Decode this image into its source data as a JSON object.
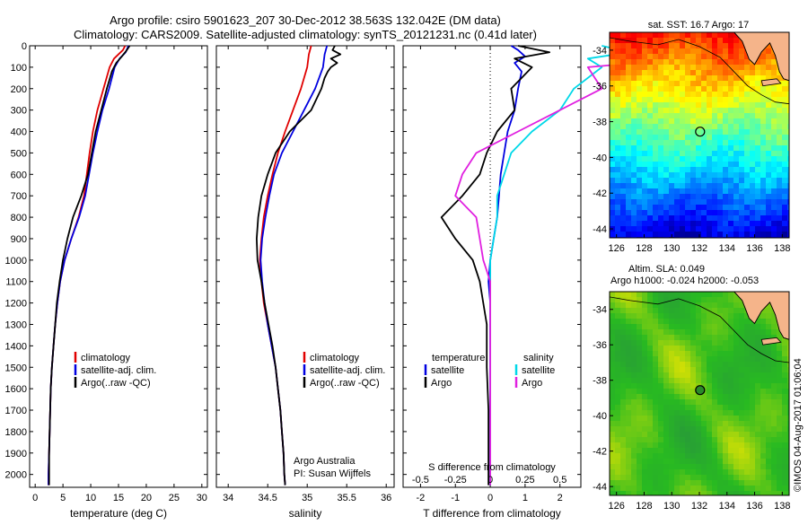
{
  "title": {
    "line1": "Argo profile: csiro 5901623_207 30-Dec-2012 38.563S 132.042E (DM data)",
    "line2": "Climatology: CARS2009. Satellite-adjusted climatology: synTS_20121231.nc (0.41d later)"
  },
  "footer": {
    "credit": "©IMOS 04-Aug-2017 01:06:04"
  },
  "colors": {
    "climatology": "#e00000",
    "satellite": "#0000e0",
    "argo": "#000000",
    "sat_diff": "#00d8e8",
    "argo_sal_diff": "#e020e0",
    "land": "#f5b48a",
    "coast": "#000000",
    "marker": "#000000"
  },
  "chart_data": [
    {
      "id": "temperature",
      "type": "line",
      "xlabel": "temperature (deg C)",
      "ylabel": "",
      "xlim": [
        -1,
        31
      ],
      "ylim": [
        2060,
        0
      ],
      "xticks": [
        0,
        5,
        10,
        15,
        20,
        25,
        30
      ],
      "yticks": [
        0,
        100,
        200,
        300,
        400,
        500,
        600,
        700,
        800,
        900,
        1000,
        1100,
        1200,
        1300,
        1400,
        1500,
        1600,
        1700,
        1800,
        1900,
        2000
      ],
      "legend": [
        "climatology",
        "satellite-adj. clim.",
        "Argo(..raw -QC)"
      ],
      "series": [
        {
          "name": "climatology",
          "color": "#e00000",
          "points": [
            [
              16.2,
              0
            ],
            [
              15.8,
              20
            ],
            [
              14.2,
              60
            ],
            [
              13.4,
              100
            ],
            [
              12.3,
              200
            ],
            [
              11.2,
              300
            ],
            [
              10.4,
              400
            ],
            [
              9.8,
              500
            ],
            [
              9.3,
              600
            ],
            [
              8.8,
              700
            ],
            [
              7.8,
              800
            ],
            [
              6.5,
              900
            ],
            [
              5.3,
              1000
            ],
            [
              4.5,
              1100
            ],
            [
              4.0,
              1200
            ],
            [
              3.6,
              1300
            ],
            [
              3.3,
              1400
            ],
            [
              3.0,
              1500
            ],
            [
              2.8,
              1600
            ],
            [
              2.7,
              1700
            ],
            [
              2.6,
              1800
            ],
            [
              2.5,
              1900
            ],
            [
              2.4,
              2000
            ],
            [
              2.4,
              2050
            ]
          ]
        },
        {
          "name": "satellite-adj. clim.",
          "color": "#0000e0",
          "points": [
            [
              16.8,
              0
            ],
            [
              16.3,
              30
            ],
            [
              15.2,
              60
            ],
            [
              14.3,
              100
            ],
            [
              13.3,
              200
            ],
            [
              12.1,
              300
            ],
            [
              11.2,
              400
            ],
            [
              10.4,
              500
            ],
            [
              9.7,
              600
            ],
            [
              9.0,
              700
            ],
            [
              7.9,
              800
            ],
            [
              6.5,
              900
            ],
            [
              5.3,
              1000
            ],
            [
              4.5,
              1100
            ],
            [
              4.0,
              1200
            ],
            [
              3.6,
              1300
            ],
            [
              3.3,
              1400
            ],
            [
              3.0,
              1500
            ],
            [
              2.8,
              1600
            ],
            [
              2.7,
              1700
            ],
            [
              2.6,
              1800
            ],
            [
              2.5,
              1900
            ],
            [
              2.4,
              2000
            ],
            [
              2.4,
              2050
            ]
          ]
        },
        {
          "name": "Argo(..raw -QC)",
          "color": "#000000",
          "points": [
            [
              17.0,
              0
            ],
            [
              16.5,
              20
            ],
            [
              15.6,
              50
            ],
            [
              14.6,
              80
            ],
            [
              13.8,
              120
            ],
            [
              12.9,
              200
            ],
            [
              11.9,
              300
            ],
            [
              10.9,
              400
            ],
            [
              10.2,
              500
            ],
            [
              9.5,
              600
            ],
            [
              8.3,
              700
            ],
            [
              6.8,
              800
            ],
            [
              5.8,
              900
            ],
            [
              5.0,
              1000
            ],
            [
              4.4,
              1100
            ],
            [
              3.9,
              1200
            ],
            [
              3.6,
              1300
            ],
            [
              3.3,
              1400
            ],
            [
              3.0,
              1500
            ],
            [
              2.8,
              1600
            ],
            [
              2.7,
              1700
            ],
            [
              2.6,
              1800
            ],
            [
              2.5,
              1900
            ],
            [
              2.5,
              2000
            ],
            [
              2.5,
              2050
            ]
          ]
        }
      ]
    },
    {
      "id": "salinity",
      "type": "line",
      "xlabel": "salinity",
      "ylabel": "",
      "xlim": [
        33.85,
        36.1
      ],
      "ylim": [
        2060,
        0
      ],
      "xticks": [
        34,
        34.5,
        35,
        35.5,
        36
      ],
      "yticks": [
        0,
        100,
        200,
        300,
        400,
        500,
        600,
        700,
        800,
        900,
        1000,
        1100,
        1200,
        1300,
        1400,
        1500,
        1600,
        1700,
        1800,
        1900,
        2000
      ],
      "legend": [
        "climatology",
        "satellite-adj. clim.",
        "Argo(..raw -QC)"
      ],
      "annotation": [
        "Argo Australia",
        "PI: Susan Wijffels"
      ],
      "series": [
        {
          "name": "climatology",
          "color": "#e00000",
          "points": [
            [
              35.05,
              0
            ],
            [
              35.02,
              40
            ],
            [
              35.0,
              100
            ],
            [
              34.92,
              200
            ],
            [
              34.82,
              300
            ],
            [
              34.72,
              400
            ],
            [
              34.63,
              500
            ],
            [
              34.56,
              600
            ],
            [
              34.5,
              700
            ],
            [
              34.45,
              800
            ],
            [
              34.42,
              900
            ],
            [
              34.4,
              1000
            ],
            [
              34.42,
              1100
            ],
            [
              34.45,
              1200
            ],
            [
              34.5,
              1300
            ],
            [
              34.55,
              1400
            ],
            [
              34.6,
              1500
            ],
            [
              34.63,
              1600
            ],
            [
              34.66,
              1700
            ],
            [
              34.68,
              1800
            ],
            [
              34.7,
              1900
            ],
            [
              34.71,
              2000
            ],
            [
              34.72,
              2050
            ]
          ]
        },
        {
          "name": "satellite-adj. clim.",
          "color": "#0000e0",
          "points": [
            [
              35.25,
              0
            ],
            [
              35.22,
              40
            ],
            [
              35.2,
              100
            ],
            [
              35.1,
              200
            ],
            [
              34.96,
              300
            ],
            [
              34.82,
              400
            ],
            [
              34.68,
              500
            ],
            [
              34.58,
              600
            ],
            [
              34.52,
              700
            ],
            [
              34.47,
              800
            ],
            [
              34.43,
              900
            ],
            [
              34.41,
              1000
            ],
            [
              34.43,
              1100
            ],
            [
              34.46,
              1200
            ],
            [
              34.5,
              1300
            ],
            [
              34.55,
              1400
            ],
            [
              34.6,
              1500
            ],
            [
              34.63,
              1600
            ],
            [
              34.66,
              1700
            ],
            [
              34.68,
              1800
            ],
            [
              34.7,
              1900
            ],
            [
              34.71,
              2000
            ],
            [
              34.72,
              2050
            ]
          ]
        },
        {
          "name": "Argo(..raw -QC)",
          "color": "#000000",
          "points": [
            [
              35.35,
              0
            ],
            [
              35.32,
              20
            ],
            [
              35.42,
              40
            ],
            [
              35.3,
              60
            ],
            [
              35.38,
              80
            ],
            [
              35.3,
              100
            ],
            [
              35.26,
              120
            ],
            [
              35.22,
              150
            ],
            [
              35.18,
              200
            ],
            [
              35.05,
              300
            ],
            [
              34.78,
              400
            ],
            [
              34.6,
              500
            ],
            [
              34.5,
              600
            ],
            [
              34.42,
              700
            ],
            [
              34.38,
              800
            ],
            [
              34.36,
              900
            ],
            [
              34.37,
              1000
            ],
            [
              34.42,
              1100
            ],
            [
              34.46,
              1200
            ],
            [
              34.51,
              1300
            ],
            [
              34.56,
              1400
            ],
            [
              34.6,
              1500
            ],
            [
              34.63,
              1600
            ],
            [
              34.66,
              1700
            ],
            [
              34.68,
              1800
            ],
            [
              34.7,
              1900
            ],
            [
              34.71,
              2000
            ],
            [
              34.72,
              2050
            ]
          ]
        }
      ]
    },
    {
      "id": "difference",
      "type": "line",
      "xlabel": "T difference from climatology",
      "xlabel_top": "S difference from climatology",
      "xlim": [
        -2.5,
        2.6
      ],
      "ylim": [
        2060,
        0
      ],
      "xticks": [
        -2,
        -1,
        0,
        1,
        2
      ],
      "xticks_s": [
        -0.5,
        -0.25,
        0,
        0.25,
        0.5
      ],
      "yticks": [
        0,
        100,
        200,
        300,
        400,
        500,
        600,
        700,
        800,
        900,
        1000,
        1100,
        1200,
        1300,
        1400,
        1500,
        1600,
        1700,
        1800,
        1900,
        2000
      ],
      "legend": {
        "temperature_header": "temperature",
        "salinity_header": "salinity",
        "items": [
          "satellite",
          "Argo",
          "satellite",
          "Argo"
        ]
      },
      "series": [
        {
          "name": "satellite",
          "group": "temperature",
          "color": "#0000e0",
          "points": [
            [
              0.6,
              0
            ],
            [
              0.8,
              20
            ],
            [
              1.0,
              50
            ],
            [
              0.7,
              80
            ],
            [
              0.9,
              120
            ],
            [
              0.8,
              200
            ],
            [
              0.7,
              300
            ],
            [
              0.5,
              400
            ],
            [
              0.4,
              500
            ],
            [
              0.3,
              600
            ],
            [
              0.25,
              700
            ],
            [
              0.2,
              800
            ],
            [
              0.1,
              900
            ],
            [
              0.0,
              1000
            ],
            [
              -0.05,
              1100
            ],
            [
              0.0,
              1200
            ],
            [
              0.0,
              1400
            ],
            [
              0.0,
              2050
            ]
          ]
        },
        {
          "name": "Argo",
          "group": "temperature",
          "color": "#000000",
          "points": [
            [
              0.8,
              0
            ],
            [
              1.7,
              30
            ],
            [
              0.7,
              60
            ],
            [
              1.2,
              100
            ],
            [
              0.6,
              200
            ],
            [
              0.7,
              300
            ],
            [
              0.2,
              400
            ],
            [
              -0.1,
              500
            ],
            [
              -0.3,
              600
            ],
            [
              -0.8,
              700
            ],
            [
              -1.4,
              800
            ],
            [
              -1.0,
              900
            ],
            [
              -0.5,
              1000
            ],
            [
              -0.3,
              1100
            ],
            [
              -0.2,
              1200
            ],
            [
              -0.1,
              1300
            ],
            [
              -0.1,
              1500
            ],
            [
              -0.05,
              1700
            ],
            [
              -0.05,
              1900
            ],
            [
              -0.05,
              2050
            ]
          ]
        },
        {
          "name": "satellite",
          "group": "salinity",
          "color": "#00d8e8",
          "points": [
            [
              0.8,
              0
            ],
            [
              1.0,
              30
            ],
            [
              0.7,
              60
            ],
            [
              0.8,
              100
            ],
            [
              0.6,
              200
            ],
            [
              0.5,
              300
            ],
            [
              0.3,
              400
            ],
            [
              0.15,
              500
            ],
            [
              0.1,
              600
            ],
            [
              0.05,
              700
            ],
            [
              0.05,
              800
            ],
            [
              0.0,
              1000
            ],
            [
              0.0,
              2050
            ]
          ]
        },
        {
          "name": "Argo",
          "group": "salinity",
          "color": "#e020e0",
          "points": [
            [
              0.9,
              0
            ],
            [
              1.5,
              20
            ],
            [
              1.2,
              40
            ],
            [
              1.4,
              60
            ],
            [
              0.7,
              100
            ],
            [
              0.8,
              200
            ],
            [
              0.5,
              300
            ],
            [
              0.2,
              400
            ],
            [
              -0.1,
              500
            ],
            [
              -0.2,
              600
            ],
            [
              -0.25,
              700
            ],
            [
              -0.1,
              800
            ],
            [
              -0.05,
              1000
            ],
            [
              0.0,
              1100
            ],
            [
              0.0,
              2050
            ]
          ]
        }
      ]
    },
    {
      "id": "sst_map",
      "type": "heatmap",
      "title": "sat. SST: 16.7 Argo: 17",
      "xlim": [
        125.5,
        138.5
      ],
      "ylim": [
        -44.5,
        -33
      ],
      "xticks": [
        126,
        128,
        130,
        132,
        134,
        136,
        138
      ],
      "yticks": [
        -34,
        -36,
        -38,
        -40,
        -42,
        -44
      ],
      "marker": [
        132.05,
        -38.56
      ]
    },
    {
      "id": "sla_map",
      "type": "heatmap",
      "title_line1": "Altim. SLA: 0.049",
      "title_line2": "Argo h1000: -0.024 h2000: -0.053",
      "xlim": [
        125.5,
        138.5
      ],
      "ylim": [
        -44.5,
        -33
      ],
      "xticks": [
        126,
        128,
        130,
        132,
        134,
        136,
        138
      ],
      "yticks": [
        -34,
        -36,
        -38,
        -40,
        -42,
        -44
      ],
      "marker": [
        132.05,
        -38.56
      ]
    }
  ]
}
